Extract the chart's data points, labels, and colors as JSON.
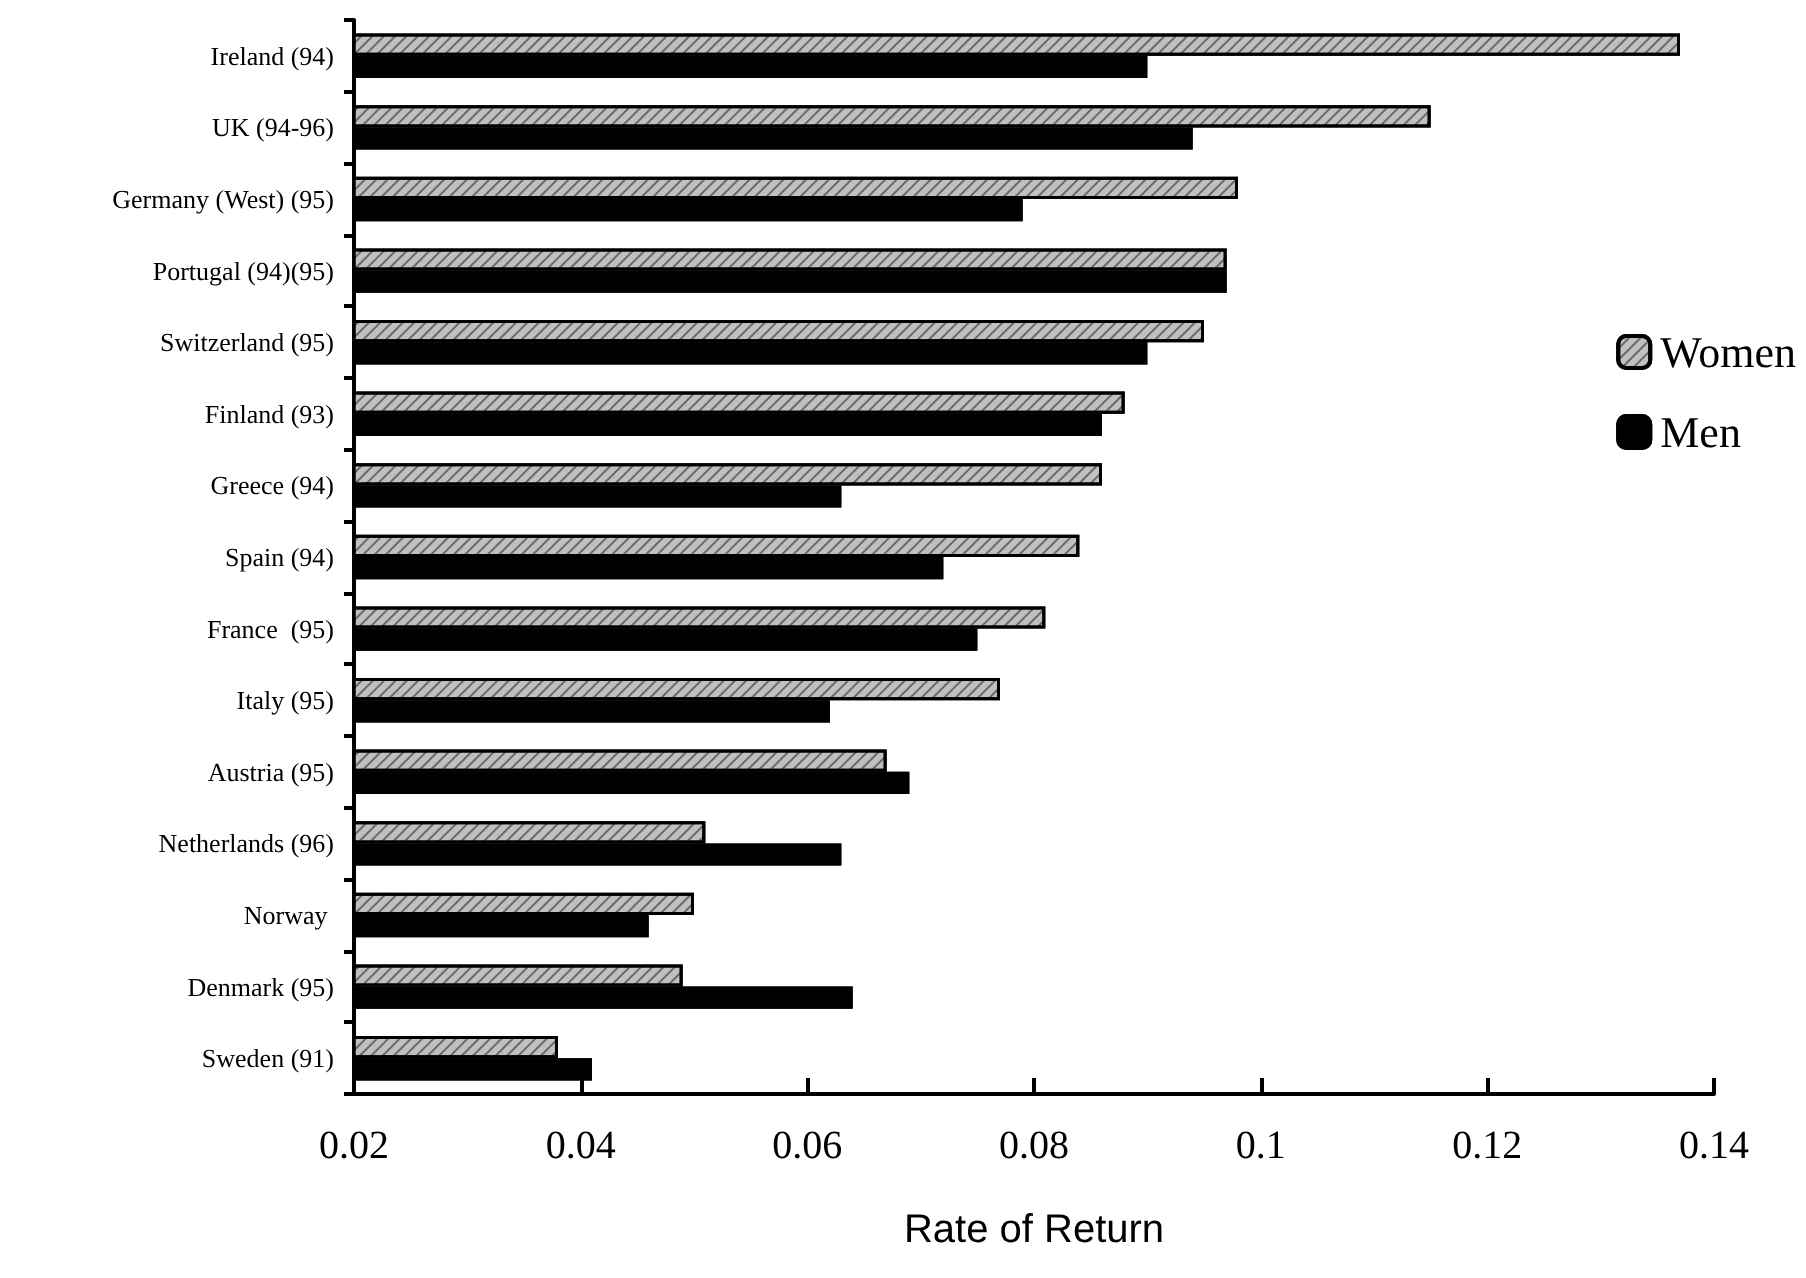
{
  "chart_data": {
    "type": "bar",
    "orientation": "horizontal",
    "xlabel": "Rate of Return",
    "categories": [
      "Ireland (94)",
      "UK (94-96)",
      "Germany (West) (95)",
      "Portugal (94)(95)",
      "Switzerland (95)",
      "Finland (93)",
      "Greece (94)",
      "Spain (94)",
      "France  (95)",
      "Italy (95)",
      "Austria (95)",
      "Netherlands (96)",
      "Norway ",
      "Denmark (95)",
      "Sweden (91)"
    ],
    "series": [
      {
        "name": "Women",
        "color": "#c0c0c0",
        "values": [
          0.137,
          0.115,
          0.098,
          0.097,
          0.095,
          0.088,
          0.086,
          0.084,
          0.081,
          0.077,
          0.067,
          0.051,
          0.05,
          0.049,
          0.038
        ]
      },
      {
        "name": "Men",
        "color": "#000000",
        "values": [
          0.09,
          0.094,
          0.079,
          0.097,
          0.09,
          0.086,
          0.063,
          0.072,
          0.075,
          0.062,
          0.069,
          0.063,
          0.046,
          0.064,
          0.041
        ]
      }
    ],
    "xlim": [
      0.02,
      0.14
    ],
    "xticks": [
      0.02,
      0.04,
      0.06,
      0.08,
      0.1,
      0.12,
      0.14
    ],
    "grid": false,
    "legend": "right"
  }
}
